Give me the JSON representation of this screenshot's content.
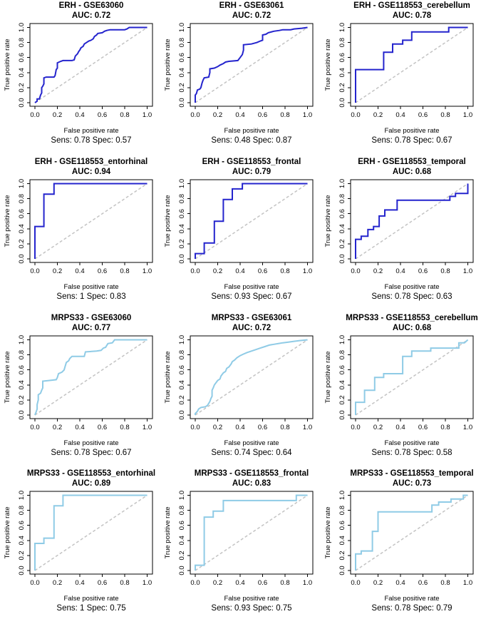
{
  "figure": {
    "description": "ROC curves",
    "diagonal_color": "#c3c3c3",
    "box_color": "#000000"
  },
  "axes": {
    "xlabel": "False positive rate",
    "ylabel": "True positive rate",
    "ticks": [
      "0.0",
      "0.2",
      "0.4",
      "0.6",
      "0.8",
      "1.0"
    ]
  },
  "colors": {
    "erh": "#2424cd",
    "mrps33": "#8fcbe6"
  },
  "chart_data": [
    {
      "type": "line",
      "title": "ERH - GSE63060",
      "auc_label": "AUC: 0.72",
      "caption": "Sens: 0.78  Spec: 0.57",
      "color": "#2424cd",
      "xlim": [
        0,
        1
      ],
      "ylim": [
        0,
        1
      ],
      "roc": [
        [
          0,
          0
        ],
        [
          0.02,
          0.02
        ],
        [
          0.02,
          0.05
        ],
        [
          0.04,
          0.05
        ],
        [
          0.05,
          0.1
        ],
        [
          0.06,
          0.13
        ],
        [
          0.06,
          0.2
        ],
        [
          0.07,
          0.22
        ],
        [
          0.08,
          0.25
        ],
        [
          0.08,
          0.33
        ],
        [
          0.1,
          0.34
        ],
        [
          0.17,
          0.34
        ],
        [
          0.18,
          0.36
        ],
        [
          0.19,
          0.44
        ],
        [
          0.2,
          0.46
        ],
        [
          0.2,
          0.53
        ],
        [
          0.23,
          0.55
        ],
        [
          0.25,
          0.56
        ],
        [
          0.33,
          0.56
        ],
        [
          0.35,
          0.57
        ],
        [
          0.36,
          0.62
        ],
        [
          0.38,
          0.65
        ],
        [
          0.39,
          0.68
        ],
        [
          0.4,
          0.7
        ],
        [
          0.41,
          0.73
        ],
        [
          0.43,
          0.75
        ],
        [
          0.44,
          0.78
        ],
        [
          0.46,
          0.8
        ],
        [
          0.48,
          0.82
        ],
        [
          0.5,
          0.83
        ],
        [
          0.52,
          0.85
        ],
        [
          0.53,
          0.88
        ],
        [
          0.55,
          0.9
        ],
        [
          0.56,
          0.92
        ],
        [
          0.6,
          0.93
        ],
        [
          0.62,
          0.95
        ],
        [
          0.64,
          0.96
        ],
        [
          0.67,
          0.97
        ],
        [
          0.8,
          0.97
        ],
        [
          0.82,
          0.98
        ],
        [
          0.84,
          1
        ],
        [
          1,
          1
        ]
      ]
    },
    {
      "type": "line",
      "title": "ERH - GSE63061",
      "auc_label": "AUC: 0.72",
      "caption": "Sens: 0.48  Spec: 0.87",
      "color": "#2424cd",
      "xlim": [
        0,
        1
      ],
      "ylim": [
        0,
        1
      ],
      "roc": [
        [
          0,
          0
        ],
        [
          0,
          0.1
        ],
        [
          0.01,
          0.12
        ],
        [
          0.02,
          0.17
        ],
        [
          0.04,
          0.18
        ],
        [
          0.05,
          0.2
        ],
        [
          0.06,
          0.26
        ],
        [
          0.07,
          0.3
        ],
        [
          0.08,
          0.33
        ],
        [
          0.12,
          0.34
        ],
        [
          0.13,
          0.4
        ],
        [
          0.13,
          0.45
        ],
        [
          0.17,
          0.46
        ],
        [
          0.2,
          0.48
        ],
        [
          0.22,
          0.5
        ],
        [
          0.25,
          0.52
        ],
        [
          0.27,
          0.54
        ],
        [
          0.3,
          0.55
        ],
        [
          0.38,
          0.56
        ],
        [
          0.4,
          0.6
        ],
        [
          0.42,
          0.64
        ],
        [
          0.43,
          0.7
        ],
        [
          0.43,
          0.77
        ],
        [
          0.5,
          0.78
        ],
        [
          0.55,
          0.8
        ],
        [
          0.58,
          0.82
        ],
        [
          0.6,
          0.83
        ],
        [
          0.6,
          0.9
        ],
        [
          0.63,
          0.91
        ],
        [
          0.65,
          0.93
        ],
        [
          0.7,
          0.95
        ],
        [
          0.75,
          0.96
        ],
        [
          0.78,
          0.97
        ],
        [
          0.85,
          0.97
        ],
        [
          0.88,
          0.98
        ],
        [
          0.95,
          0.99
        ],
        [
          1,
          1
        ]
      ]
    },
    {
      "type": "line",
      "title": "ERH - GSE118553_cerebellum",
      "auc_label": "AUC: 0.78",
      "caption": "Sens: 0.78  Spec: 0.67",
      "color": "#2424cd",
      "xlim": [
        0,
        1
      ],
      "ylim": [
        0,
        1
      ],
      "roc": [
        [
          0,
          0
        ],
        [
          0,
          0.44
        ],
        [
          0.25,
          0.44
        ],
        [
          0.25,
          0.67
        ],
        [
          0.33,
          0.67
        ],
        [
          0.33,
          0.78
        ],
        [
          0.42,
          0.78
        ],
        [
          0.42,
          0.83
        ],
        [
          0.5,
          0.83
        ],
        [
          0.5,
          0.94
        ],
        [
          0.83,
          0.94
        ],
        [
          0.83,
          1
        ],
        [
          1,
          1
        ]
      ]
    },
    {
      "type": "line",
      "title": "ERH - GSE118553_entorhinal",
      "auc_label": "AUC: 0.94",
      "caption": "Sens: 1  Spec: 0.83",
      "color": "#2424cd",
      "xlim": [
        0,
        1
      ],
      "ylim": [
        0,
        1
      ],
      "roc": [
        [
          0,
          0
        ],
        [
          0,
          0.43
        ],
        [
          0.08,
          0.43
        ],
        [
          0.08,
          0.86
        ],
        [
          0.17,
          0.86
        ],
        [
          0.17,
          1
        ],
        [
          1,
          1
        ]
      ]
    },
    {
      "type": "line",
      "title": "ERH - GSE118553_frontal",
      "auc_label": "AUC: 0.79",
      "caption": "Sens: 0.93  Spec: 0.67",
      "color": "#2424cd",
      "xlim": [
        0,
        1
      ],
      "ylim": [
        0,
        1
      ],
      "roc": [
        [
          0,
          0
        ],
        [
          0,
          0.07
        ],
        [
          0.08,
          0.07
        ],
        [
          0.08,
          0.21
        ],
        [
          0.17,
          0.21
        ],
        [
          0.17,
          0.5
        ],
        [
          0.25,
          0.5
        ],
        [
          0.25,
          0.79
        ],
        [
          0.33,
          0.79
        ],
        [
          0.33,
          0.93
        ],
        [
          0.42,
          0.93
        ],
        [
          0.42,
          1
        ],
        [
          1,
          1
        ]
      ]
    },
    {
      "type": "line",
      "title": "ERH - GSE118553_temporal",
      "auc_label": "AUC: 0.68",
      "caption": "Sens: 0.78  Spec: 0.63",
      "color": "#2424cd",
      "xlim": [
        0,
        1
      ],
      "ylim": [
        0,
        1
      ],
      "roc": [
        [
          0,
          0
        ],
        [
          0,
          0.26
        ],
        [
          0.05,
          0.26
        ],
        [
          0.05,
          0.3
        ],
        [
          0.11,
          0.3
        ],
        [
          0.11,
          0.39
        ],
        [
          0.16,
          0.39
        ],
        [
          0.16,
          0.43
        ],
        [
          0.21,
          0.43
        ],
        [
          0.21,
          0.57
        ],
        [
          0.26,
          0.57
        ],
        [
          0.26,
          0.65
        ],
        [
          0.37,
          0.65
        ],
        [
          0.37,
          0.78
        ],
        [
          0.84,
          0.78
        ],
        [
          0.84,
          0.83
        ],
        [
          0.89,
          0.83
        ],
        [
          0.89,
          0.87
        ],
        [
          1,
          0.87
        ],
        [
          1,
          1
        ]
      ]
    },
    {
      "type": "line",
      "title": "MRPS33 - GSE63060",
      "auc_label": "AUC: 0.77",
      "caption": "Sens: 0.78  Spec: 0.67",
      "color": "#8fcbe6",
      "xlim": [
        0,
        1
      ],
      "ylim": [
        0,
        1
      ],
      "roc": [
        [
          0,
          0
        ],
        [
          0.01,
          0.04
        ],
        [
          0.02,
          0.08
        ],
        [
          0.02,
          0.14
        ],
        [
          0.03,
          0.2
        ],
        [
          0.03,
          0.27
        ],
        [
          0.05,
          0.29
        ],
        [
          0.06,
          0.33
        ],
        [
          0.07,
          0.36
        ],
        [
          0.07,
          0.45
        ],
        [
          0.13,
          0.46
        ],
        [
          0.19,
          0.47
        ],
        [
          0.2,
          0.5
        ],
        [
          0.21,
          0.55
        ],
        [
          0.24,
          0.57
        ],
        [
          0.26,
          0.6
        ],
        [
          0.27,
          0.65
        ],
        [
          0.28,
          0.7
        ],
        [
          0.3,
          0.72
        ],
        [
          0.31,
          0.75
        ],
        [
          0.33,
          0.78
        ],
        [
          0.44,
          0.78
        ],
        [
          0.45,
          0.84
        ],
        [
          0.55,
          0.85
        ],
        [
          0.59,
          0.86
        ],
        [
          0.61,
          0.89
        ],
        [
          0.63,
          0.9
        ],
        [
          0.65,
          0.95
        ],
        [
          0.69,
          0.96
        ],
        [
          0.71,
          1
        ],
        [
          1,
          1
        ]
      ]
    },
    {
      "type": "line",
      "title": "MRPS33 - GSE63061",
      "auc_label": "AUC: 0.72",
      "caption": "Sens: 0.74  Spec: 0.64",
      "color": "#8fcbe6",
      "xlim": [
        0,
        1
      ],
      "ylim": [
        0,
        1
      ],
      "roc": [
        [
          0,
          0
        ],
        [
          0,
          0.02
        ],
        [
          0.02,
          0.05
        ],
        [
          0.03,
          0.08
        ],
        [
          0.05,
          0.1
        ],
        [
          0.09,
          0.11
        ],
        [
          0.11,
          0.13
        ],
        [
          0.13,
          0.18
        ],
        [
          0.14,
          0.22
        ],
        [
          0.15,
          0.25
        ],
        [
          0.15,
          0.33
        ],
        [
          0.16,
          0.36
        ],
        [
          0.17,
          0.4
        ],
        [
          0.19,
          0.44
        ],
        [
          0.2,
          0.46
        ],
        [
          0.22,
          0.48
        ],
        [
          0.23,
          0.52
        ],
        [
          0.25,
          0.56
        ],
        [
          0.27,
          0.58
        ],
        [
          0.28,
          0.62
        ],
        [
          0.3,
          0.64
        ],
        [
          0.32,
          0.68
        ],
        [
          0.33,
          0.71
        ],
        [
          0.35,
          0.73
        ],
        [
          0.37,
          0.76
        ],
        [
          0.4,
          0.79
        ],
        [
          0.43,
          0.81
        ],
        [
          0.46,
          0.83
        ],
        [
          0.5,
          0.85
        ],
        [
          0.54,
          0.87
        ],
        [
          0.58,
          0.89
        ],
        [
          0.62,
          0.91
        ],
        [
          0.66,
          0.93
        ],
        [
          0.7,
          0.94
        ],
        [
          0.74,
          0.95
        ],
        [
          0.78,
          0.96
        ],
        [
          0.83,
          0.97
        ],
        [
          0.88,
          0.98
        ],
        [
          0.93,
          0.99
        ],
        [
          1,
          1
        ]
      ]
    },
    {
      "type": "line",
      "title": "MRPS33 - GSE118553_cerebellum",
      "auc_label": "AUC: 0.68",
      "caption": "Sens: 0.78  Spec: 0.58",
      "color": "#8fcbe6",
      "xlim": [
        0,
        1
      ],
      "ylim": [
        0,
        1
      ],
      "roc": [
        [
          0,
          0
        ],
        [
          0,
          0.17
        ],
        [
          0.08,
          0.17
        ],
        [
          0.08,
          0.33
        ],
        [
          0.17,
          0.33
        ],
        [
          0.17,
          0.5
        ],
        [
          0.25,
          0.5
        ],
        [
          0.25,
          0.55
        ],
        [
          0.42,
          0.55
        ],
        [
          0.42,
          0.78
        ],
        [
          0.5,
          0.78
        ],
        [
          0.5,
          0.85
        ],
        [
          0.67,
          0.85
        ],
        [
          0.67,
          0.89
        ],
        [
          0.92,
          0.89
        ],
        [
          0.92,
          0.96
        ],
        [
          0.97,
          0.96
        ],
        [
          1,
          1
        ]
      ]
    },
    {
      "type": "line",
      "title": "MRPS33 - GSE118553_entorhinal",
      "auc_label": "AUC: 0.89",
      "caption": "Sens: 1  Spec: 0.75",
      "color": "#8fcbe6",
      "xlim": [
        0,
        1
      ],
      "ylim": [
        0,
        1
      ],
      "roc": [
        [
          0,
          0
        ],
        [
          0,
          0.36
        ],
        [
          0.08,
          0.36
        ],
        [
          0.08,
          0.43
        ],
        [
          0.17,
          0.43
        ],
        [
          0.17,
          0.86
        ],
        [
          0.25,
          0.86
        ],
        [
          0.25,
          1
        ],
        [
          1,
          1
        ]
      ]
    },
    {
      "type": "line",
      "title": "MRPS33 - GSE118553_frontal",
      "auc_label": "AUC: 0.83",
      "caption": "Sens: 0.93  Spec: 0.75",
      "color": "#8fcbe6",
      "xlim": [
        0,
        1
      ],
      "ylim": [
        0,
        1
      ],
      "roc": [
        [
          0,
          0
        ],
        [
          0,
          0.07
        ],
        [
          0.08,
          0.07
        ],
        [
          0.08,
          0.71
        ],
        [
          0.16,
          0.71
        ],
        [
          0.16,
          0.79
        ],
        [
          0.25,
          0.79
        ],
        [
          0.25,
          0.93
        ],
        [
          0.9,
          0.93
        ],
        [
          0.9,
          1
        ],
        [
          1,
          1
        ]
      ]
    },
    {
      "type": "line",
      "title": "MRPS33 - GSE118553_temporal",
      "auc_label": "AUC: 0.73",
      "caption": "Sens: 0.78  Spec: 0.79",
      "color": "#8fcbe6",
      "xlim": [
        0,
        1
      ],
      "ylim": [
        0,
        1
      ],
      "roc": [
        [
          0,
          0
        ],
        [
          0,
          0.22
        ],
        [
          0.05,
          0.22
        ],
        [
          0.05,
          0.26
        ],
        [
          0.15,
          0.26
        ],
        [
          0.15,
          0.52
        ],
        [
          0.2,
          0.52
        ],
        [
          0.2,
          0.78
        ],
        [
          0.68,
          0.78
        ],
        [
          0.68,
          0.87
        ],
        [
          0.74,
          0.87
        ],
        [
          0.74,
          0.91
        ],
        [
          0.85,
          0.91
        ],
        [
          0.85,
          0.95
        ],
        [
          0.96,
          0.95
        ],
        [
          0.96,
          1
        ],
        [
          1,
          1
        ]
      ]
    }
  ]
}
